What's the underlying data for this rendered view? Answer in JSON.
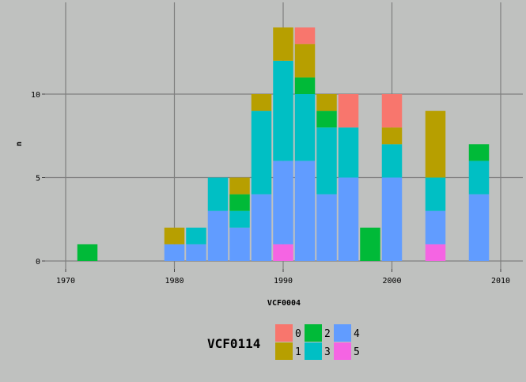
{
  "chart_data": {
    "type": "bar",
    "stacked": true,
    "xlabel": "VCF0004",
    "ylabel": "n",
    "xlim": [
      1970,
      2010
    ],
    "ylim": [
      0,
      14
    ],
    "x_ticks": [
      "1970",
      "1980",
      "1990",
      "2000",
      "2010"
    ],
    "y_ticks": [
      "0",
      "5",
      "10"
    ],
    "bin_width": 2,
    "stack_order": [
      "5",
      "4",
      "3",
      "2",
      "1",
      "0"
    ],
    "grid": true,
    "background": "#bfc1bf",
    "legend": {
      "title": "VCF0114",
      "position": "bottom",
      "entries": [
        {
          "label": "0",
          "color": "#f8766d"
        },
        {
          "label": "1",
          "color": "#b79f00"
        },
        {
          "label": "2",
          "color": "#00ba38"
        },
        {
          "label": "3",
          "color": "#00bfc4"
        },
        {
          "label": "4",
          "color": "#619cff"
        },
        {
          "label": "5",
          "color": "#f564e3"
        }
      ]
    },
    "bars": [
      {
        "x": 1972,
        "counts": {
          "2": 1
        }
      },
      {
        "x": 1980,
        "counts": {
          "4": 1,
          "1": 1
        }
      },
      {
        "x": 1982,
        "counts": {
          "4": 1,
          "3": 1
        }
      },
      {
        "x": 1984,
        "counts": {
          "4": 3,
          "3": 2
        }
      },
      {
        "x": 1986,
        "counts": {
          "4": 2,
          "3": 1,
          "2": 1,
          "1": 1
        }
      },
      {
        "x": 1988,
        "counts": {
          "4": 4,
          "3": 5,
          "1": 1
        }
      },
      {
        "x": 1990,
        "counts": {
          "5": 1,
          "4": 5,
          "3": 6,
          "1": 2
        }
      },
      {
        "x": 1992,
        "counts": {
          "4": 6,
          "3": 4,
          "2": 1,
          "1": 2,
          "0": 1
        }
      },
      {
        "x": 1994,
        "counts": {
          "4": 4,
          "3": 4,
          "2": 1,
          "1": 1
        }
      },
      {
        "x": 1996,
        "counts": {
          "4": 5,
          "3": 3,
          "0": 2
        }
      },
      {
        "x": 1998,
        "counts": {
          "2": 2
        }
      },
      {
        "x": 2000,
        "counts": {
          "4": 5,
          "3": 2,
          "1": 1,
          "0": 2
        }
      },
      {
        "x": 2004,
        "counts": {
          "5": 1,
          "4": 2,
          "3": 2,
          "1": 4
        }
      },
      {
        "x": 2008,
        "counts": {
          "4": 4,
          "3": 2,
          "2": 1
        }
      }
    ]
  }
}
